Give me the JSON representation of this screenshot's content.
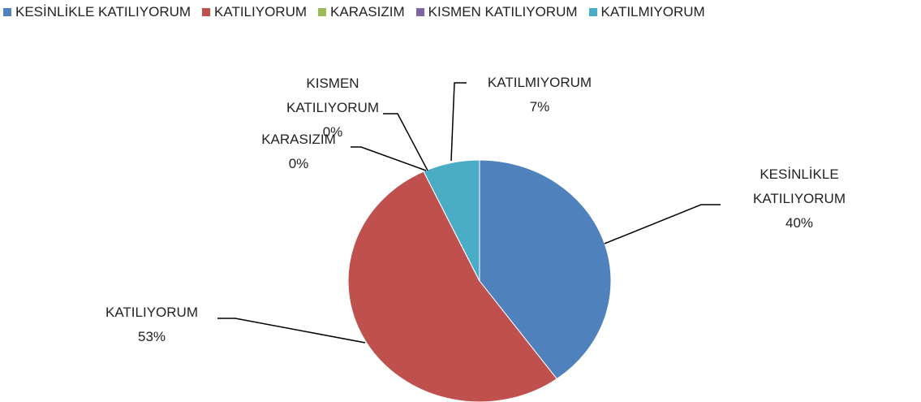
{
  "chart_data": {
    "type": "pie",
    "categories": [
      "KESİNLİKLE KATILIYORUM",
      "KATILIYORUM",
      "KARASIZIM",
      "KISMEN KATILIYORUM",
      "KATILMIYORUM"
    ],
    "values": [
      40,
      53,
      0,
      0,
      7
    ],
    "value_labels": [
      "40%",
      "53%",
      "0%",
      "0%",
      "7%"
    ],
    "colors": [
      "#4f81bd",
      "#c0504d",
      "#9bbb59",
      "#8064a2",
      "#4bacc6"
    ],
    "legend": "top"
  }
}
